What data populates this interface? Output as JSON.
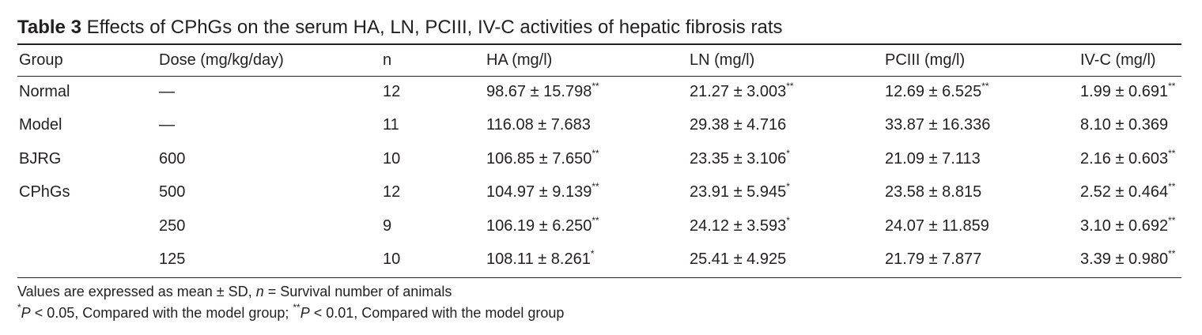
{
  "caption": {
    "label": "Table 3",
    "text": "Effects of CPhGs on the serum HA, LN, PCIII, IV-C activities of hepatic fibrosis rats"
  },
  "table": {
    "columns": [
      "Group",
      "Dose (mg/kg/day)",
      "n",
      "HA (mg/l)",
      "LN (mg/l)",
      "PCIII (mg/l)",
      "IV-C (mg/l)"
    ],
    "rows": [
      [
        "Normal",
        "—",
        "12",
        {
          "text": "98.67 ± 15.798",
          "sup": "**"
        },
        {
          "text": "21.27 ± 3.003",
          "sup": "**"
        },
        {
          "text": "12.69 ± 6.525",
          "sup": "**"
        },
        {
          "text": "1.99 ± 0.691",
          "sup": "**"
        }
      ],
      [
        "Model",
        "—",
        "11",
        "116.08 ± 7.683",
        "29.38 ± 4.716",
        "33.87 ± 16.336",
        "8.10 ± 0.369"
      ],
      [
        "BJRG",
        "600",
        "10",
        {
          "text": "106.85 ± 7.650",
          "sup": "**"
        },
        {
          "text": "23.35 ± 3.106",
          "sup": "*"
        },
        "21.09 ± 7.113",
        {
          "text": "2.16 ± 0.603",
          "sup": "**"
        }
      ],
      [
        "CPhGs",
        "500",
        "12",
        {
          "text": "104.97 ± 9.139",
          "sup": "**"
        },
        {
          "text": "23.91 ± 5.945",
          "sup": "*"
        },
        "23.58 ± 8.815",
        {
          "text": "2.52 ± 0.464",
          "sup": "**"
        }
      ],
      [
        null,
        "250",
        "9",
        {
          "text": "106.19 ± 6.250",
          "sup": "**"
        },
        {
          "text": "24.12 ± 3.593",
          "sup": "*"
        },
        "24.07 ± 11.859",
        {
          "text": "3.10 ± 0.692",
          "sup": "**"
        }
      ],
      [
        null,
        "125",
        "10",
        {
          "text": "108.11 ± 8.261",
          "sup": "*"
        },
        "25.41 ± 4.925",
        "21.79 ± 7.877",
        {
          "text": "3.39 ± 0.980",
          "sup": "**"
        }
      ]
    ]
  },
  "footnotes": [
    [
      {
        "text": "Values are expressed as mean ± SD, "
      },
      {
        "text": "n",
        "italic": true
      },
      {
        "text": " = Survival number of animals"
      }
    ],
    [
      {
        "text": "*",
        "sup": true
      },
      {
        "text": "P",
        "italic": true
      },
      {
        "text": " < 0.05, Compared with the model group; "
      },
      {
        "text": "**",
        "sup": true
      },
      {
        "text": "P",
        "italic": true
      },
      {
        "text": " < 0.01, Compared with the model group"
      }
    ]
  ]
}
